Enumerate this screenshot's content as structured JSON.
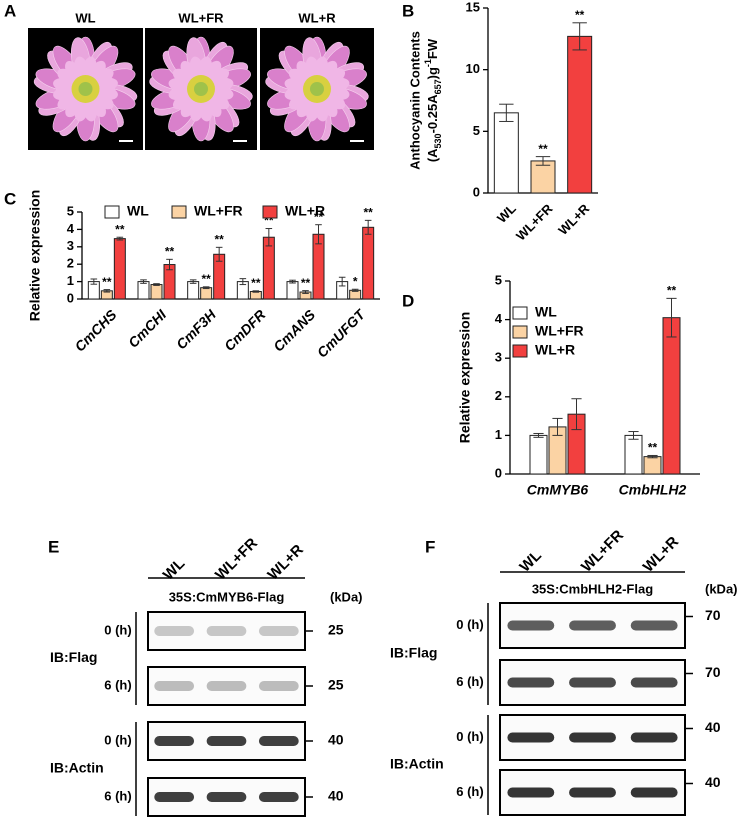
{
  "photos": {
    "panel": "A",
    "labels": [
      "WL",
      "WL+FR",
      "WL+R"
    ]
  },
  "chart_data": [
    {
      "type": "bar",
      "panel": "B",
      "ylabel": {
        "line1": "Anthocyanin Contents",
        "line2": [
          {
            "text": "(A"
          },
          {
            "sub": "530"
          },
          {
            "text": "-0.25A"
          },
          {
            "sub": "657"
          },
          {
            "text": ")g"
          },
          {
            "sup": "-1"
          },
          {
            "text": "FW"
          }
        ]
      },
      "categories": [
        "WL",
        "WL+FR",
        "WL+R"
      ],
      "series": [
        {
          "colors": [
            "#ffffff",
            "#fbd3a4",
            "#f2403f"
          ],
          "values": [
            6.5,
            2.6,
            12.7
          ],
          "errors": [
            0.7,
            0.35,
            1.1
          ],
          "annotations": [
            null,
            "**",
            "**"
          ]
        }
      ],
      "ylim": [
        0,
        15
      ],
      "yticks": [
        0,
        5,
        10,
        15
      ]
    },
    {
      "type": "bar",
      "panel": "C",
      "ylabel": {
        "line1": "Relative expression"
      },
      "categories": [
        "CmCHS",
        "CmCHI",
        "CmF3H",
        "CmDFR",
        "CmANS",
        "CmUFGT"
      ],
      "series": [
        {
          "name": "WL",
          "color": "#ffffff",
          "values": [
            1.0,
            1.0,
            1.0,
            1.0,
            1.0,
            1.0
          ],
          "errors": [
            0.15,
            0.1,
            0.1,
            0.17,
            0.08,
            0.25
          ],
          "annotations": [
            null,
            null,
            null,
            null,
            null,
            null
          ]
        },
        {
          "name": "WL+FR",
          "color": "#fbd3a4",
          "values": [
            0.47,
            0.83,
            0.65,
            0.43,
            0.4,
            0.5
          ],
          "errors": [
            0.07,
            0.05,
            0.05,
            0.04,
            0.08,
            0.06
          ],
          "annotations": [
            "**",
            null,
            "**",
            "**",
            "**",
            "*"
          ]
        },
        {
          "name": "WL+R",
          "color": "#f2403f",
          "values": [
            3.47,
            1.98,
            2.57,
            3.55,
            3.72,
            4.12
          ],
          "errors": [
            0.08,
            0.3,
            0.4,
            0.5,
            0.55,
            0.4
          ],
          "annotations": [
            "**",
            "**",
            "**",
            "**",
            "**",
            "**"
          ]
        }
      ],
      "ylim": [
        0,
        5
      ],
      "yticks": [
        0,
        1,
        2,
        3,
        4,
        5
      ],
      "legend": "top"
    },
    {
      "type": "bar",
      "panel": "D",
      "ylabel": {
        "line1": "Relative expression"
      },
      "categories": [
        "CmMYB6",
        "CmbHLH2"
      ],
      "series": [
        {
          "name": "WL",
          "color": "#ffffff",
          "values": [
            1.0,
            1.0
          ],
          "errors": [
            0.05,
            0.1
          ],
          "annotations": [
            null,
            null
          ]
        },
        {
          "name": "WL+FR",
          "color": "#fbd3a4",
          "values": [
            1.22,
            0.45
          ],
          "errors": [
            0.22,
            0.03
          ],
          "annotations": [
            null,
            "**"
          ]
        },
        {
          "name": "WL+R",
          "color": "#f2403f",
          "values": [
            1.55,
            4.05
          ],
          "errors": [
            0.4,
            0.5
          ],
          "annotations": [
            null,
            "**"
          ]
        }
      ],
      "ylim": [
        0,
        5
      ],
      "yticks": [
        0,
        1,
        2,
        3,
        4,
        5
      ],
      "legend": "upper left"
    }
  ],
  "blots": [
    {
      "panel": "E",
      "columns": [
        "WL",
        "WL+FR",
        "WL+R"
      ],
      "construct": "35S:CmMYB6-Flag",
      "unit": "(kDa)",
      "groups": [
        {
          "label": "IB:Flag",
          "rows": [
            {
              "time": "0 (h)",
              "marker": "25"
            },
            {
              "time": "6 (h)",
              "marker": "25"
            }
          ]
        },
        {
          "label": "IB:Actin",
          "rows": [
            {
              "time": "0 (h)",
              "marker": "40"
            },
            {
              "time": "6 (h)",
              "marker": "40"
            }
          ]
        }
      ]
    },
    {
      "panel": "F",
      "columns": [
        "WL",
        "WL+FR",
        "WL+R"
      ],
      "construct": "35S:CmbHLH2-Flag",
      "unit": "(kDa)",
      "groups": [
        {
          "label": "IB:Flag",
          "rows": [
            {
              "time": "0 (h)",
              "marker": "70"
            },
            {
              "time": "6 (h)",
              "marker": "70"
            }
          ]
        },
        {
          "label": "IB:Actin",
          "rows": [
            {
              "time": "0 (h)",
              "marker": "40"
            },
            {
              "time": "6 (h)",
              "marker": "40"
            }
          ]
        }
      ]
    }
  ]
}
